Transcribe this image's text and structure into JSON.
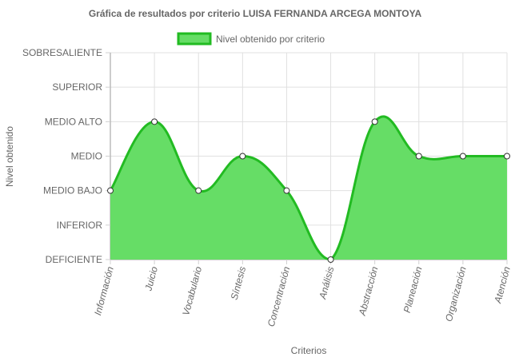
{
  "chart_data": {
    "type": "line",
    "title": "Gráfica de resultados por criterio LUISA FERNANDA ARCEGA MONTOYA",
    "xlabel": "Criterios",
    "ylabel": "Nivel obtenido",
    "legend_position": "top",
    "grid": true,
    "fill": true,
    "curve": "smooth",
    "y_levels": [
      "DEFICIENTE",
      "INFERIOR",
      "MEDIO BAJO",
      "MEDIO",
      "MEDIO ALTO",
      "SUPERIOR",
      "SOBRESALIENTE"
    ],
    "ylim": [
      0,
      6
    ],
    "categories": [
      "Información",
      "Juicio",
      "Vocabulario",
      "Síntesis",
      "Concentración",
      "Análisis",
      "Abstracción",
      "Planeación",
      "Organización",
      "Atención"
    ],
    "series": [
      {
        "name": "Nivel obtenido por criterio",
        "values": [
          2,
          4,
          2,
          3,
          2,
          0,
          4,
          3,
          3,
          3
        ],
        "color": "#22bb22",
        "fill_color": "#66dd66"
      }
    ]
  }
}
